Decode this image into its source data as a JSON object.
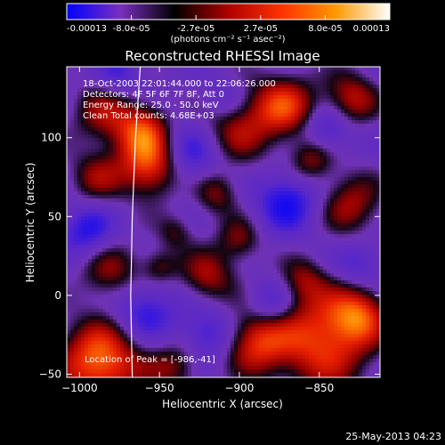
{
  "colorbar": {
    "ticks": [
      "-0.00013",
      "-8.0e-05",
      "-2.7e-05",
      "2.7e-05",
      "8.0e-05",
      "0.00013"
    ],
    "unit_label": "(photons cm⁻² s⁻¹ asec⁻²)",
    "colors": [
      "#0000ff",
      "#7a2fbf",
      "#000000",
      "#b00000",
      "#ff3300",
      "#ff9900",
      "#ffffff"
    ]
  },
  "chart_data": {
    "type": "heatmap",
    "title": "Reconstructed RHESSI Image",
    "xlabel": "Heliocentric X (arcsec)",
    "ylabel": "Heliocentric Y (arcsec)",
    "xlim": [
      -1008,
      -812
    ],
    "ylim": [
      -52,
      145
    ],
    "x_ticks": [
      -1000,
      -950,
      -900,
      -850
    ],
    "y_ticks": [
      -50,
      0,
      50,
      100
    ],
    "x_tick_labels": [
      "−1000",
      "−950",
      "−900",
      "−850"
    ],
    "y_tick_labels": [
      "−50",
      "0",
      "50",
      "100"
    ],
    "annotations": [
      "18-Oct-2003 22:01:44.000 to 22:06:26.000",
      "Detectors: 4F 5F 6F 7F 8F, Att 0",
      "Energy Range: 25.0 - 50.0 keV",
      "Clean    Total counts: 4.68E+03"
    ],
    "peak_label": "Location of Peak = [-986,-41]",
    "limb_curve": [
      [
        -962,
        145
      ],
      [
        -965,
        100
      ],
      [
        -967,
        50
      ],
      [
        -968,
        0
      ],
      [
        -967,
        -52
      ]
    ],
    "blobs": [
      {
        "x": -987,
        "y": -42,
        "r": 18,
        "v": 1.0
      },
      {
        "x": -955,
        "y": 82,
        "r": 14,
        "v": 0.9
      },
      {
        "x": -960,
        "y": 105,
        "r": 12,
        "v": 0.7
      },
      {
        "x": -848,
        "y": -28,
        "r": 22,
        "v": 0.85
      },
      {
        "x": -890,
        "y": -30,
        "r": 14,
        "v": 0.7
      },
      {
        "x": -825,
        "y": -12,
        "r": 12,
        "v": 0.65
      },
      {
        "x": -872,
        "y": 120,
        "r": 14,
        "v": 0.75
      },
      {
        "x": -905,
        "y": 105,
        "r": 18,
        "v": 0.6
      },
      {
        "x": -830,
        "y": 58,
        "r": 14,
        "v": 0.55
      },
      {
        "x": -855,
        "y": 85,
        "r": 10,
        "v": 0.5
      },
      {
        "x": -915,
        "y": 65,
        "r": 10,
        "v": 0.5
      },
      {
        "x": -980,
        "y": 15,
        "r": 14,
        "v": 0.5
      },
      {
        "x": -920,
        "y": 12,
        "r": 12,
        "v": 0.55
      },
      {
        "x": -900,
        "y": 35,
        "r": 10,
        "v": 0.45
      },
      {
        "x": -950,
        "y": 18,
        "r": 8,
        "v": 0.4
      },
      {
        "x": -990,
        "y": 75,
        "r": 12,
        "v": 0.45
      },
      {
        "x": -985,
        "y": 115,
        "r": 14,
        "v": 0.5
      },
      {
        "x": -940,
        "y": 40,
        "r": 8,
        "v": 0.35
      },
      {
        "x": -860,
        "y": 10,
        "r": 10,
        "v": 0.4
      },
      {
        "x": -830,
        "y": 125,
        "r": 12,
        "v": 0.6
      },
      {
        "x": -940,
        "y": -45,
        "r": 12,
        "v": 0.45
      },
      {
        "x": -930,
        "y": 90,
        "r": 16,
        "v": -0.6
      },
      {
        "x": -870,
        "y": 60,
        "r": 14,
        "v": -0.55
      },
      {
        "x": -960,
        "y": -10,
        "r": 14,
        "v": -0.5
      },
      {
        "x": -995,
        "y": 40,
        "r": 12,
        "v": -0.5
      },
      {
        "x": -920,
        "y": -25,
        "r": 12,
        "v": -0.45
      },
      {
        "x": -845,
        "y": 105,
        "r": 10,
        "v": -0.45
      },
      {
        "x": -880,
        "y": -5,
        "r": 10,
        "v": -0.4
      },
      {
        "x": -910,
        "y": 125,
        "r": 10,
        "v": -0.35
      },
      {
        "x": -975,
        "y": 140,
        "r": 10,
        "v": -0.35
      },
      {
        "x": -825,
        "y": 20,
        "r": 10,
        "v": -0.35
      }
    ]
  },
  "footer": {
    "timestamp": "25-May-2013 04:23"
  }
}
